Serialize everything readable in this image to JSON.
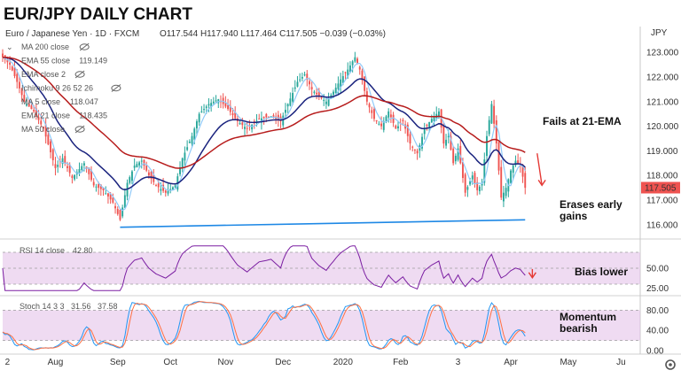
{
  "title": "EUR/JPY DAILY CHART",
  "symbol_line": {
    "name": "Euro / Japanese Yen · 1D · FXCM",
    "ohlc": "O117.544  H117.940  L117.464  C117.505  −0.039 (−0.03%)"
  },
  "currency": "JPY",
  "last_price": "117.505",
  "colors": {
    "up": "#26a69a",
    "down": "#ef5350",
    "ema21": "#b71c1c",
    "ema55": "#1a237e",
    "sma5": "#90caf9",
    "rsi": "#7b1fa2",
    "stoch_k": "#2196f3",
    "stoch_d": "#ff7043",
    "band": "#e1bee7",
    "support": "#1e88e5",
    "arrow": "#e53935",
    "price_tag": "#ef5350"
  },
  "legend": [
    {
      "label": "MA 200 close",
      "value": "",
      "muted": true
    },
    {
      "label": "EMA 55 close",
      "value": "119.149",
      "muted": false
    },
    {
      "label": "EMA close 2",
      "value": "",
      "muted": true
    },
    {
      "label": "Ichimoku 9 26 52 26",
      "value": "",
      "muted": true
    },
    {
      "label": "MA 5 close",
      "value": "118.047",
      "muted": false
    },
    {
      "label": "EMA 21 close",
      "value": "118.435",
      "muted": false
    },
    {
      "label": "MA 50 close",
      "value": "",
      "muted": true
    }
  ],
  "annotations": {
    "fails": "Fails at 21-EMA",
    "erases_1": "Erases early",
    "erases_2": "gains",
    "bias": "Bias lower",
    "momentum_1": "Momentum",
    "momentum_2": "bearish"
  },
  "rsi_header": {
    "label": "RSI 14 close",
    "value": "42.80"
  },
  "stoch_header": {
    "label": "Stoch 14 3 3",
    "k": "31.56",
    "d": "37.58"
  },
  "chart_data": {
    "type": "candlestick",
    "price_axis": {
      "ticks": [
        "123.000",
        "122.000",
        "121.000",
        "120.000",
        "119.000",
        "118.000",
        "117.000",
        "116.000"
      ],
      "ylim": [
        115.6,
        123.4
      ]
    },
    "rsi_axis": {
      "ticks": [
        "50.00",
        "25.00"
      ],
      "ylim": [
        20,
        80
      ],
      "band": [
        30,
        70
      ]
    },
    "stoch_axis": {
      "ticks": [
        "80.00",
        "40.00",
        "0.00"
      ],
      "ylim": [
        0,
        100
      ],
      "band": [
        20,
        80
      ]
    },
    "x_labels": [
      {
        "label": "2",
        "x": 2
      },
      {
        "label": "Aug",
        "x": 22
      },
      {
        "label": "Sep",
        "x": 48
      },
      {
        "label": "Oct",
        "x": 70
      },
      {
        "label": "Nov",
        "x": 93
      },
      {
        "label": "Dec",
        "x": 117
      },
      {
        "label": "2020",
        "x": 142
      },
      {
        "label": "Feb",
        "x": 166
      },
      {
        "label": "3",
        "x": 190
      },
      {
        "label": "Apr",
        "x": 212
      },
      {
        "label": "May",
        "x": 236
      },
      {
        "label": "Ju",
        "x": 258
      }
    ],
    "x_range": [
      0,
      266
    ],
    "anchors": [
      {
        "x": 0,
        "c": 122.8
      },
      {
        "x": 3,
        "c": 122.5
      },
      {
        "x": 6,
        "c": 121.8
      },
      {
        "x": 9,
        "c": 121.0
      },
      {
        "x": 13,
        "c": 120.6
      },
      {
        "x": 17,
        "c": 119.9
      },
      {
        "x": 22,
        "c": 118.3
      },
      {
        "x": 25,
        "c": 118.7
      },
      {
        "x": 29,
        "c": 117.9
      },
      {
        "x": 34,
        "c": 118.5
      },
      {
        "x": 38,
        "c": 117.6
      },
      {
        "x": 42,
        "c": 117.4
      },
      {
        "x": 46,
        "c": 116.9
      },
      {
        "x": 49,
        "c": 116.2
      },
      {
        "x": 52,
        "c": 117.7
      },
      {
        "x": 55,
        "c": 118.4
      },
      {
        "x": 58,
        "c": 118.6
      },
      {
        "x": 61,
        "c": 118.0
      },
      {
        "x": 64,
        "c": 117.6
      },
      {
        "x": 68,
        "c": 117.3
      },
      {
        "x": 72,
        "c": 117.6
      },
      {
        "x": 75,
        "c": 118.7
      },
      {
        "x": 79,
        "c": 119.6
      },
      {
        "x": 82,
        "c": 120.5
      },
      {
        "x": 86,
        "c": 120.9
      },
      {
        "x": 90,
        "c": 121.1
      },
      {
        "x": 94,
        "c": 120.7
      },
      {
        "x": 98,
        "c": 120.2
      },
      {
        "x": 102,
        "c": 119.9
      },
      {
        "x": 107,
        "c": 120.3
      },
      {
        "x": 112,
        "c": 120.4
      },
      {
        "x": 116,
        "c": 120.2
      },
      {
        "x": 119,
        "c": 120.9
      },
      {
        "x": 123,
        "c": 121.8
      },
      {
        "x": 126,
        "c": 122.1
      },
      {
        "x": 129,
        "c": 121.5
      },
      {
        "x": 132,
        "c": 121.2
      },
      {
        "x": 135,
        "c": 121.0
      },
      {
        "x": 138,
        "c": 121.4
      },
      {
        "x": 141,
        "c": 121.9
      },
      {
        "x": 144,
        "c": 122.3
      },
      {
        "x": 147,
        "c": 122.8
      },
      {
        "x": 149,
        "c": 122.3
      },
      {
        "x": 152,
        "c": 121.0
      },
      {
        "x": 155,
        "c": 120.3
      },
      {
        "x": 158,
        "c": 120.0
      },
      {
        "x": 161,
        "c": 120.6
      },
      {
        "x": 164,
        "c": 119.9
      },
      {
        "x": 167,
        "c": 120.2
      },
      {
        "x": 170,
        "c": 119.3
      },
      {
        "x": 173,
        "c": 118.9
      },
      {
        "x": 176,
        "c": 119.9
      },
      {
        "x": 179,
        "c": 120.3
      },
      {
        "x": 182,
        "c": 120.6
      },
      {
        "x": 184,
        "c": 119.3
      },
      {
        "x": 186,
        "c": 119.6
      },
      {
        "x": 188,
        "c": 118.5
      },
      {
        "x": 190,
        "c": 119.1
      },
      {
        "x": 193,
        "c": 117.3
      },
      {
        "x": 196,
        "c": 118.0
      },
      {
        "x": 198,
        "c": 117.4
      },
      {
        "x": 200,
        "c": 117.7
      },
      {
        "x": 202,
        "c": 119.6
      },
      {
        "x": 204,
        "c": 120.9
      },
      {
        "x": 206,
        "c": 119.3
      },
      {
        "x": 208,
        "c": 117.1
      },
      {
        "x": 210,
        "c": 117.5
      },
      {
        "x": 212,
        "c": 118.2
      },
      {
        "x": 214,
        "c": 118.6
      },
      {
        "x": 216,
        "c": 118.4
      },
      {
        "x": 218,
        "c": 117.5
      }
    ],
    "support_line": {
      "x": [
        49,
        218
      ],
      "y": [
        115.9,
        116.2
      ]
    },
    "red_arrows": [
      {
        "panel": "price",
        "from": [
          223,
          118.9
        ],
        "to": [
          225,
          117.6
        ]
      },
      {
        "panel": "rsi",
        "from": [
          221,
          49
        ],
        "to": [
          221,
          38
        ]
      }
    ]
  }
}
